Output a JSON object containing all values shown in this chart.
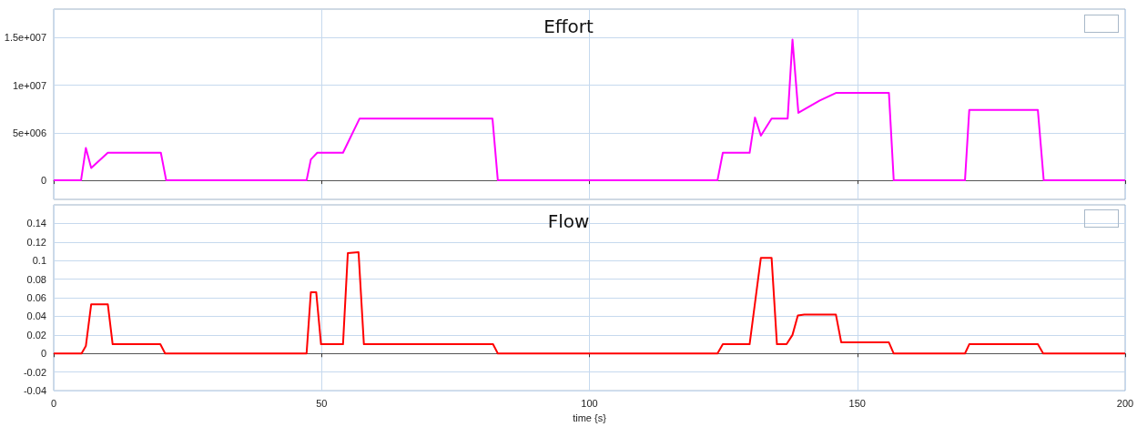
{
  "chart_data": [
    {
      "type": "line",
      "title": "Effort",
      "xlim": [
        0,
        200
      ],
      "xticks": [
        0,
        50,
        100,
        150,
        200
      ],
      "ylim": [
        -2000000,
        18000000
      ],
      "yticks": [
        0,
        {
          "value": 5000000,
          "label": "5e+006"
        },
        {
          "value": 10000000,
          "label": "1e+007"
        },
        {
          "value": 15000000,
          "label": "1.5e+007"
        }
      ],
      "tick_labels": "y",
      "grid": true,
      "marker": "none",
      "line_style": "solid",
      "series": [
        {
          "color": "#ff00ff",
          "x": [
            0,
            5.1,
            6.0,
            7.0,
            10.1,
            20.0,
            21.0,
            47.2,
            48.0,
            49.2,
            54.0,
            57.1,
            81.9,
            82.9,
            123.9,
            124.9,
            129.9,
            130.9,
            132.0,
            134.0,
            137.0,
            137.9,
            139.0,
            143.0,
            146.1,
            155.9,
            156.8,
            170.1,
            170.9,
            183.7,
            184.8,
            200
          ],
          "values": [
            0,
            0,
            3400000,
            1300000,
            2900000,
            2900000,
            0,
            0,
            2200000,
            2900000,
            2900000,
            6500000,
            6500000,
            0,
            0,
            2900000,
            2900000,
            6600000,
            4700000,
            6500000,
            6500000,
            14800000,
            7100000,
            8400000,
            9200000,
            9200000,
            0,
            0,
            7400000,
            7400000,
            0,
            0
          ]
        }
      ]
    },
    {
      "type": "line",
      "title": "Flow",
      "xlabel": "time {s}",
      "xlim": [
        0,
        200
      ],
      "xticks": [
        0,
        50,
        100,
        150,
        200
      ],
      "ylim": [
        -0.04,
        0.16
      ],
      "yticks": [
        -0.04,
        -0.02,
        0,
        0.02,
        0.04,
        0.06,
        0.08,
        0.1,
        0.12,
        0.14
      ],
      "grid": true,
      "marker": "none",
      "line_style": "solid",
      "series": [
        {
          "color": "#ff0000",
          "x": [
            0,
            5.2,
            6.0,
            7.0,
            10.1,
            11.0,
            19.9,
            20.8,
            47.2,
            48.0,
            49.0,
            49.9,
            54.0,
            54.9,
            56.9,
            57.9,
            82.0,
            82.9,
            123.9,
            124.9,
            129.9,
            132.0,
            134.0,
            135.0,
            136.8,
            137.9,
            138.9,
            140.1,
            146.0,
            147.0,
            155.9,
            156.8,
            170.1,
            170.9,
            183.7,
            184.7,
            200
          ],
          "values": [
            0,
            0,
            0.008,
            0.053,
            0.053,
            0.01,
            0.01,
            0,
            0,
            0.066,
            0.066,
            0.01,
            0.01,
            0.108,
            0.109,
            0.01,
            0.01,
            0,
            0,
            0.01,
            0.01,
            0.103,
            0.103,
            0.01,
            0.01,
            0.02,
            0.041,
            0.042,
            0.042,
            0.012,
            0.012,
            0,
            0,
            0.01,
            0.01,
            0,
            0
          ]
        }
      ]
    }
  ]
}
